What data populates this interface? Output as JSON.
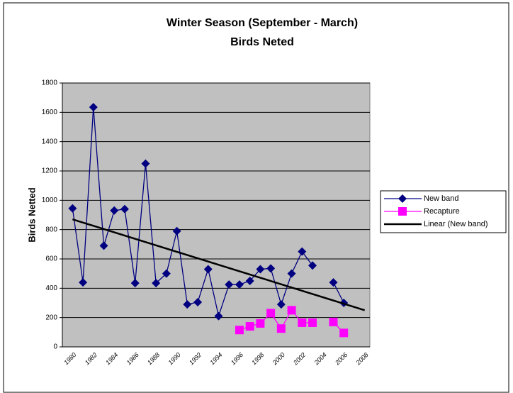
{
  "chart_data": {
    "type": "line",
    "title": "Winter Season (September - March)",
    "subtitle": "Birds Neted",
    "y_label": "Birds Netted",
    "categories": [
      "1980",
      null,
      "1982",
      null,
      "1984",
      null,
      "1986",
      null,
      "1988",
      null,
      "1990",
      null,
      "1992",
      null,
      "1994",
      null,
      "1996",
      null,
      "1998",
      null,
      "2000",
      null,
      "2002",
      null,
      "2004",
      null,
      "2006",
      null,
      "2008"
    ],
    "series": [
      {
        "name": "New band",
        "color": "#000080",
        "marker": "diamond",
        "values": [
          945,
          440,
          1635,
          690,
          930,
          940,
          435,
          1250,
          435,
          500,
          790,
          290,
          305,
          530,
          210,
          425,
          425,
          450,
          530,
          535,
          290,
          500,
          650,
          555,
          null,
          440,
          300,
          null,
          null
        ]
      },
      {
        "name": "Recapture",
        "color": "#ff00ff",
        "marker": "square",
        "values": [
          null,
          null,
          null,
          null,
          null,
          null,
          null,
          null,
          null,
          null,
          null,
          null,
          null,
          null,
          null,
          null,
          115,
          140,
          160,
          230,
          125,
          250,
          165,
          165,
          null,
          170,
          95,
          null,
          null
        ]
      }
    ],
    "trendline": {
      "name": "Linear (New band)",
      "color": "#000000",
      "start": 870,
      "end": 250
    },
    "ylim": [
      0,
      1800
    ],
    "yticks": [
      0,
      200,
      400,
      600,
      800,
      1000,
      1200,
      1400,
      1600,
      1800
    ],
    "grid": true,
    "legend": "right"
  }
}
